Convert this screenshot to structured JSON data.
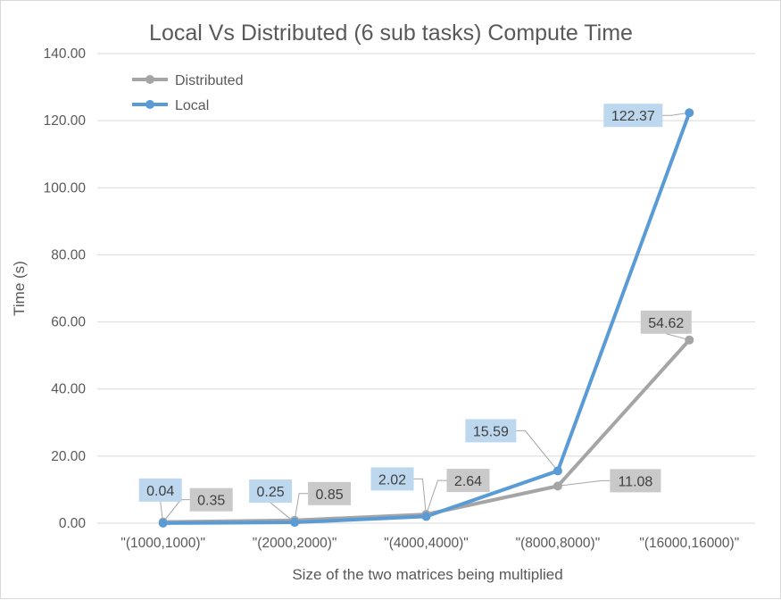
{
  "colors": {
    "distributed": "#a5a5a5",
    "local": "#5b9bd5",
    "local_label_bg": "#bdd7ee",
    "distributed_label_bg": "#c9c9c9",
    "gridline": "#d9d9d9",
    "text": "#595959"
  },
  "chart_data": {
    "type": "line",
    "title": "Local Vs Distributed (6 sub tasks) Compute Time",
    "xlabel": "Size of the two matrices being multiplied",
    "ylabel": "Time (s)",
    "categories": [
      "\"(1000,1000)\"",
      "\"(2000,2000)\"",
      "\"(4000,4000)\"",
      "\"(8000,8000)\"",
      "\"(16000,16000)\""
    ],
    "ylim": [
      0,
      140
    ],
    "yticks": [
      "0.00",
      "20.00",
      "40.00",
      "60.00",
      "80.00",
      "100.00",
      "120.00",
      "140.00"
    ],
    "grid": true,
    "legend_position": "top-left",
    "series": [
      {
        "name": "Distributed",
        "values": [
          0.35,
          0.85,
          2.64,
          11.08,
          54.62
        ],
        "labels": [
          "0.35",
          "0.85",
          "2.64",
          "11.08",
          "54.62"
        ]
      },
      {
        "name": "Local",
        "values": [
          0.04,
          0.25,
          2.02,
          15.59,
          122.37
        ],
        "labels": [
          "0.04",
          "0.25",
          "2.02",
          "15.59",
          "122.37"
        ]
      }
    ]
  }
}
